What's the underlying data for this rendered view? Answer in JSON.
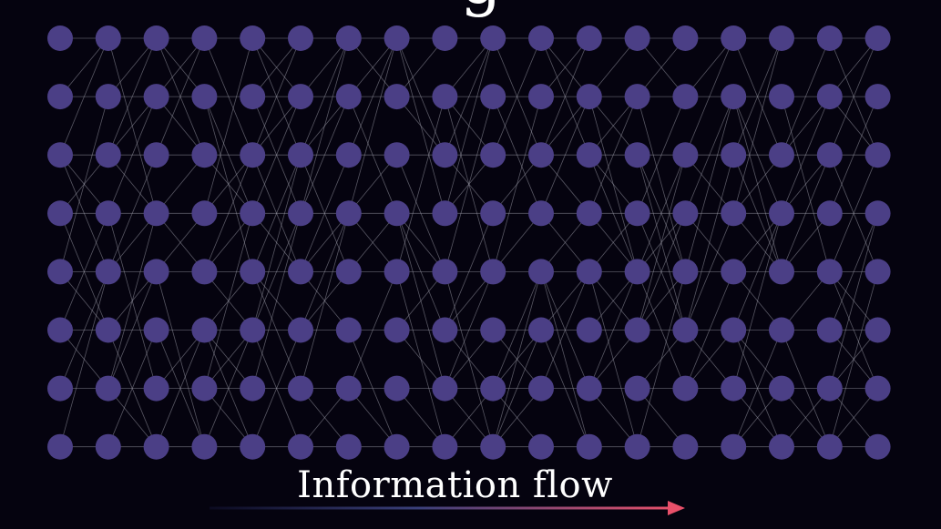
{
  "title_fragment": "g",
  "caption": "Information flow",
  "network": {
    "columns": 18,
    "rows": 8,
    "connections_per_node": 3,
    "seed": 7
  },
  "colors": {
    "background": "#05030f",
    "node": "#4b3f86",
    "edge": "#9a9aa8",
    "text": "#ffffff",
    "arrow_start": "#0b0a20",
    "arrow_mid": "#3a3f7a",
    "arrow_end": "#e8506a"
  },
  "icons": {
    "arrow": "right-arrow-icon"
  }
}
